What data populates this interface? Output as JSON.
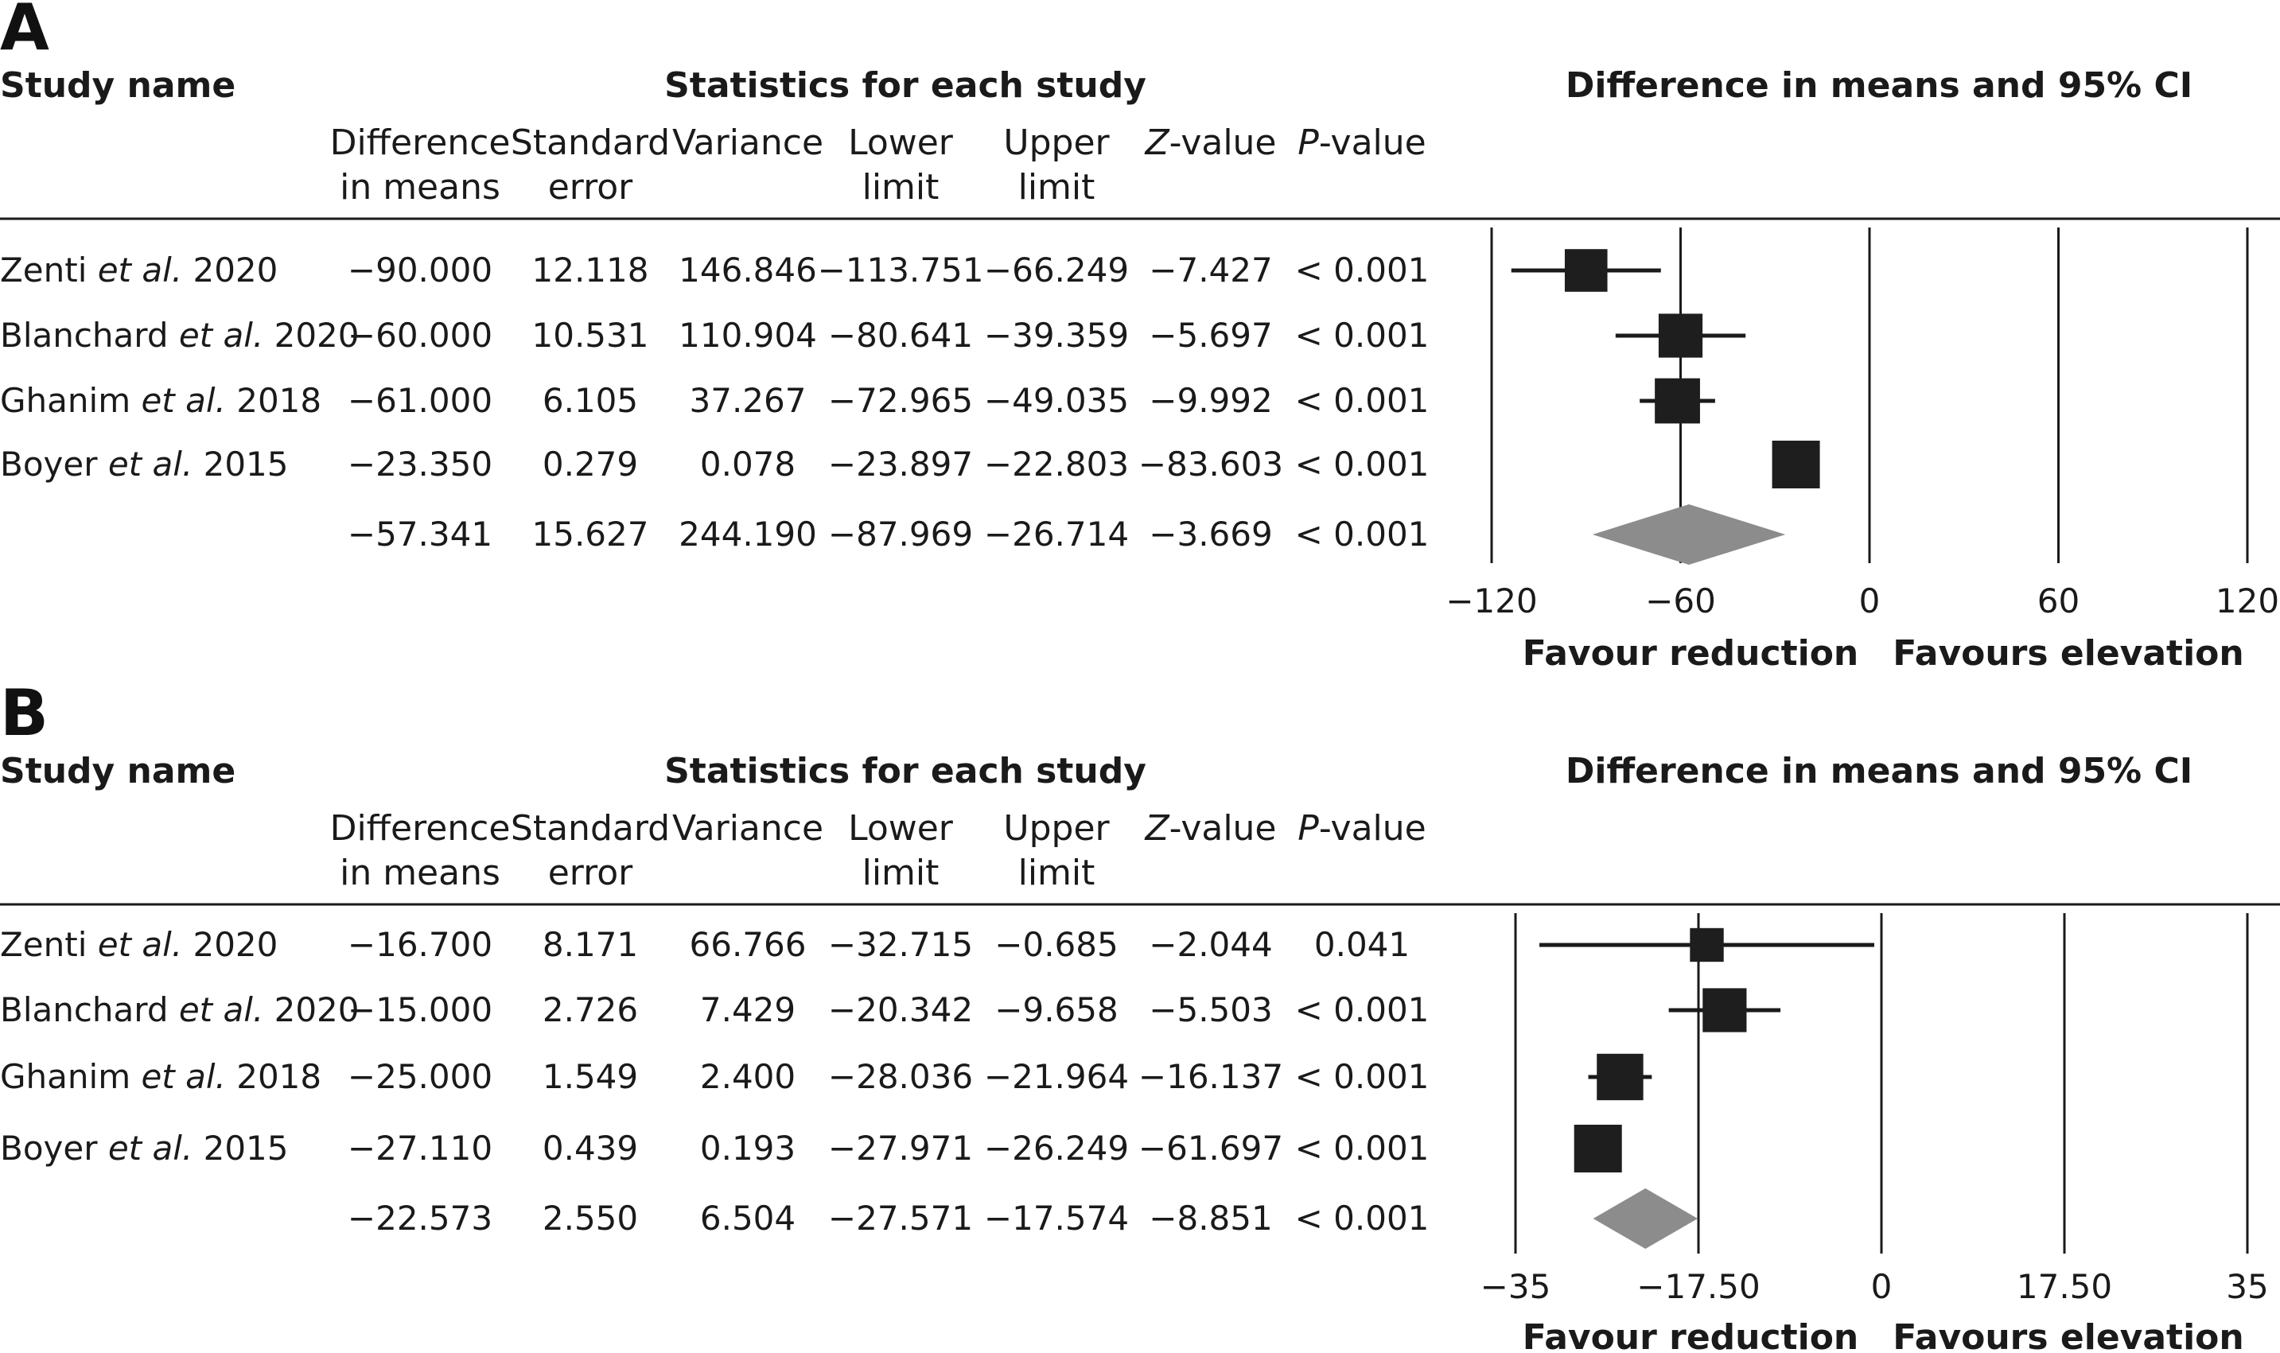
{
  "colors": {
    "ink": "#1a1a1a",
    "marker": "#1e1e1e",
    "diamond": "#8c8c8c"
  },
  "headers": {
    "study_name": "Study name",
    "stats": "Statistics for each study",
    "ci": "Difference in means and 95% CI",
    "columns": [
      [
        "Difference",
        "in means"
      ],
      [
        "Standard",
        "error"
      ],
      [
        "Variance",
        ""
      ],
      [
        "Lower",
        "limit"
      ],
      [
        "Upper",
        "limit"
      ],
      [
        "Z-value",
        ""
      ],
      [
        "P-value",
        ""
      ]
    ],
    "favour_left": "Favour reduction",
    "favour_right": "Favours elevation"
  },
  "chart_data": [
    {
      "type": "forest",
      "panel": "A",
      "axis": {
        "min": -120,
        "max": 120,
        "ticks": [
          -120,
          -60,
          0,
          60,
          120
        ],
        "tick_labels": [
          "−120",
          "−60",
          "0",
          "60",
          "120"
        ],
        "null_line": -60
      },
      "studies": [
        {
          "name": "Zenti",
          "italic": "et al.",
          "year": "2020",
          "diff": -90.0,
          "cells": [
            "−90.000",
            "12.118",
            "146.846",
            "−113.751",
            "−66.249",
            "−7.427",
            "< 0.001"
          ],
          "lower": -113.751,
          "upper": -66.249,
          "weight": 0.8
        },
        {
          "name": "Blanchard",
          "italic": "et al.",
          "year": "2020",
          "diff": -60.0,
          "cells": [
            "−60.000",
            "10.531",
            "110.904",
            "−80.641",
            "−39.359",
            "−5.697",
            "< 0.001"
          ],
          "lower": -80.641,
          "upper": -39.359,
          "weight": 0.85
        },
        {
          "name": "Ghanim",
          "italic": "et al.",
          "year": "2018",
          "diff": -61.0,
          "cells": [
            "−61.000",
            "6.105",
            "37.267",
            "−72.965",
            "−49.035",
            "−9.992",
            "< 0.001"
          ],
          "lower": -72.965,
          "upper": -49.035,
          "weight": 0.9
        },
        {
          "name": "Boyer",
          "italic": "et al.",
          "year": "2015",
          "diff": -23.35,
          "cells": [
            "−23.350",
            "0.279",
            "0.078",
            "−23.897",
            "−22.803",
            "−83.603",
            "< 0.001"
          ],
          "lower": -23.897,
          "upper": -22.803,
          "weight": 1.0
        }
      ],
      "summary": {
        "diff": -57.341,
        "cells": [
          "−57.341",
          "15.627",
          "244.190",
          "−87.969",
          "−26.714",
          "−3.669",
          "< 0.001"
        ],
        "lower": -87.969,
        "upper": -26.714
      }
    },
    {
      "type": "forest",
      "panel": "B",
      "axis": {
        "min": -35,
        "max": 35,
        "ticks": [
          -35,
          -17.5,
          0,
          17.5,
          35
        ],
        "tick_labels": [
          "−35",
          "−17.50",
          "0",
          "17.50",
          "35"
        ],
        "null_line": -17.5
      },
      "studies": [
        {
          "name": "Zenti",
          "italic": "et al.",
          "year": "2020",
          "diff": -16.7,
          "cells": [
            "−16.700",
            "8.171",
            "66.766",
            "−32.715",
            "−0.685",
            "−2.044",
            "0.041"
          ],
          "lower": -32.715,
          "upper": -0.685,
          "weight": 0.45
        },
        {
          "name": "Blanchard",
          "italic": "et al.",
          "year": "2020",
          "diff": -15.0,
          "cells": [
            "−15.000",
            "2.726",
            "7.429",
            "−20.342",
            "−9.658",
            "−5.503",
            "< 0.001"
          ],
          "lower": -20.342,
          "upper": -9.658,
          "weight": 0.85
        },
        {
          "name": "Ghanim",
          "italic": "et al.",
          "year": "2018",
          "diff": -25.0,
          "cells": [
            "−25.000",
            "1.549",
            "2.400",
            "−28.036",
            "−21.964",
            "−16.137",
            "< 0.001"
          ],
          "lower": -28.036,
          "upper": -21.964,
          "weight": 0.95
        },
        {
          "name": "Boyer",
          "italic": "et al.",
          "year": "2015",
          "diff": -27.11,
          "cells": [
            "−27.110",
            "0.439",
            "0.193",
            "−27.971",
            "−26.249",
            "−61.697",
            "< 0.001"
          ],
          "lower": -27.971,
          "upper": -26.249,
          "weight": 1.0
        }
      ],
      "summary": {
        "diff": -22.573,
        "cells": [
          "−22.573",
          "2.550",
          "6.504",
          "−27.571",
          "−17.574",
          "−8.851",
          "< 0.001"
        ],
        "lower": -27.571,
        "upper": -17.574
      }
    }
  ]
}
